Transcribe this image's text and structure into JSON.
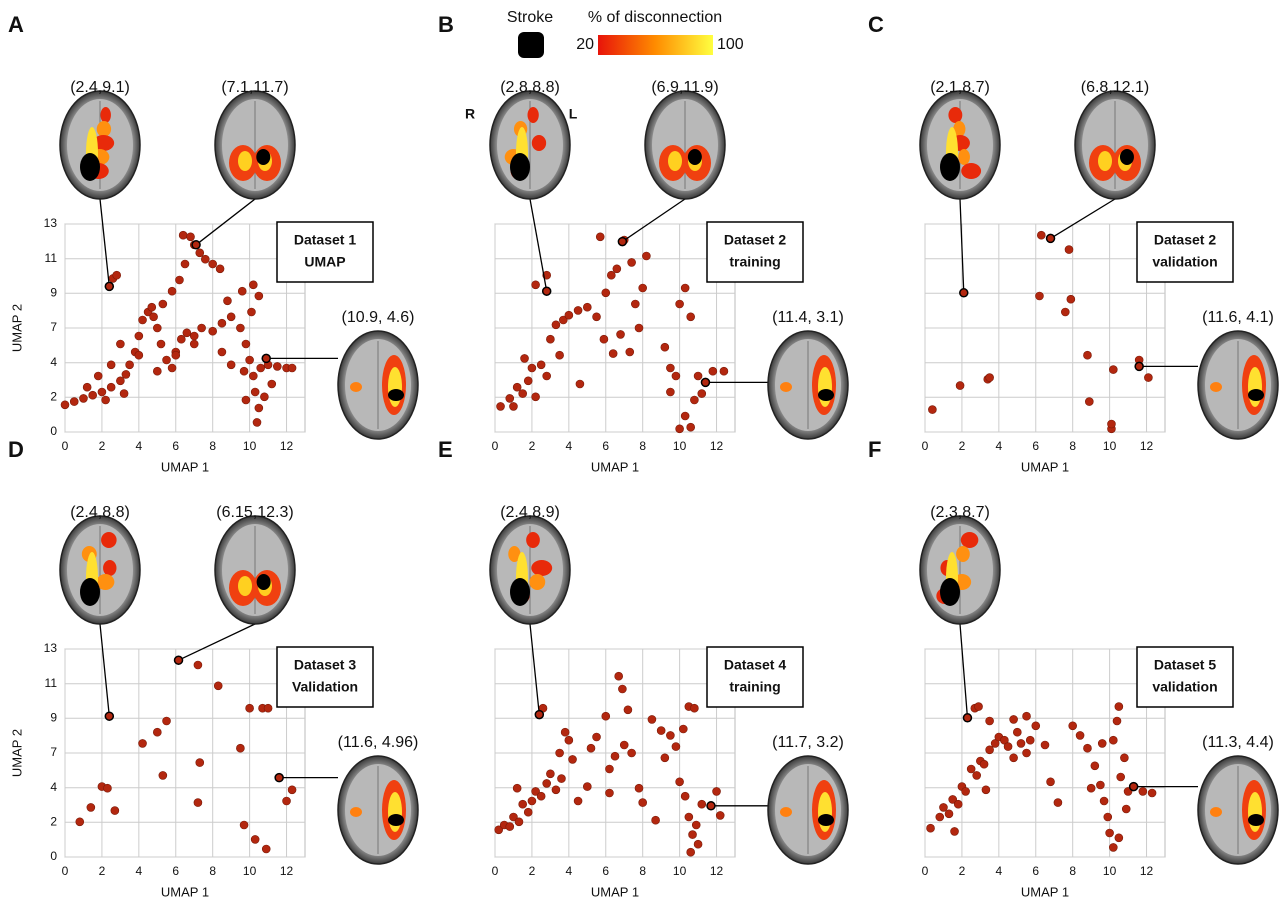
{
  "legend": {
    "stroke_label": "Stroke",
    "scale_title": "% of disconnection",
    "scale_min": 20,
    "scale_max": 100,
    "scale_colors": [
      "#e8140a",
      "#ff8c00",
      "#ffff40"
    ]
  },
  "chart_data": [
    {
      "type": "scatter",
      "panel": "A",
      "annotation": [
        "Dataset 1",
        "UMAP"
      ],
      "xlabel": "UMAP 1",
      "ylabel": "UMAP 2",
      "color": "#b3270f",
      "grid": true,
      "ytick_labels": true,
      "xlim": [
        0,
        13
      ],
      "ylim": [
        0,
        13
      ],
      "xticks": [
        0,
        2,
        4,
        6,
        8,
        10,
        12
      ],
      "yticks": [
        0,
        {
          "value": 2.17,
          "label": "2"
        },
        {
          "value": 4.33,
          "label": "4"
        },
        {
          "value": 6.5,
          "label": "7"
        },
        {
          "value": 8.67,
          "label": "9"
        },
        {
          "value": 10.83,
          "label": "11"
        },
        13
      ],
      "callouts": [
        {
          "label": "(2.4,9.1)",
          "x": 2.4,
          "y": 9.1
        },
        {
          "label": "(7.1,11.7)",
          "x": 7.1,
          "y": 11.7
        },
        {
          "label": "(10.9, 4.6)",
          "x": 10.9,
          "y": 4.6
        }
      ],
      "x": [
        0,
        0.5,
        1,
        1.5,
        2,
        2.5,
        3,
        3.3,
        3.5,
        3.8,
        4,
        4.2,
        4.5,
        4.8,
        5,
        5.2,
        5.5,
        5.8,
        6,
        6.3,
        6.6,
        7,
        7.4,
        8,
        8.5,
        9,
        9.5,
        9.8,
        10,
        10.2,
        10.3,
        10.5,
        10.4,
        9.8,
        9.7,
        10.6,
        11,
        11.5,
        12,
        12.3,
        10.2,
        10.5,
        10.1,
        6.4,
        6.8,
        7,
        7.3,
        7.6,
        8,
        8.4,
        6.5,
        6.2,
        5.8,
        5.3,
        4.7,
        3,
        2.5,
        1.8,
        1.2,
        2.4,
        2.6,
        2.8,
        4,
        5,
        6,
        7,
        8.5,
        9,
        8.8,
        9.6,
        11.2,
        10.8,
        2.2,
        3.2
      ],
      "y": [
        1.7,
        1.9,
        2.1,
        2.3,
        2.5,
        2.8,
        3.2,
        3.6,
        4.2,
        5,
        6,
        7,
        7.5,
        7.2,
        6.5,
        5.5,
        4.5,
        4,
        5,
        5.8,
        6.2,
        6,
        6.5,
        6.3,
        6.8,
        7.2,
        6.5,
        5.5,
        4.5,
        3.5,
        2.5,
        1.5,
        0.6,
        2,
        3.8,
        4,
        4.2,
        4.1,
        4,
        4,
        9.2,
        8.5,
        7.5,
        12.3,
        12.2,
        11.7,
        11.2,
        10.8,
        10.5,
        10.2,
        10.5,
        9.5,
        8.8,
        8,
        7.8,
        5.5,
        4.2,
        3.5,
        2.8,
        9.1,
        9.6,
        9.8,
        4.8,
        3.8,
        4.8,
        5.5,
        5,
        4.2,
        8.2,
        8.8,
        3,
        2.2,
        2,
        2.4
      ]
    },
    {
      "type": "scatter",
      "panel": "B",
      "annotation": [
        "Dataset 2",
        "training"
      ],
      "xlabel": "UMAP 1",
      "color": "#b3270f",
      "grid": true,
      "ytick_labels": false,
      "orientation": [
        "R",
        "L"
      ],
      "xlim": [
        0,
        13
      ],
      "ylim": [
        0,
        13
      ],
      "xticks": [
        0,
        2,
        4,
        6,
        8,
        10,
        12
      ],
      "yticks": [
        0,
        2.17,
        4.33,
        6.5,
        8.67,
        10.83,
        13
      ],
      "callouts": [
        {
          "label": "(2.8,8.8)",
          "x": 2.8,
          "y": 8.8
        },
        {
          "label": "(6.9,11.9)",
          "x": 6.9,
          "y": 11.9
        },
        {
          "label": "(11.4, 3.1)",
          "x": 11.4,
          "y": 3.1
        }
      ],
      "x": [
        0.3,
        0.8,
        1.2,
        1.5,
        1.8,
        2,
        2.2,
        1.6,
        2.5,
        2.8,
        3,
        3.3,
        3.7,
        4,
        4.5,
        5,
        2.8,
        2.2,
        5.7,
        7,
        6.6,
        7.4,
        6,
        6.3,
        5.5,
        5.9,
        6.4,
        6.8,
        7.3,
        7.6,
        8,
        8.2,
        7.8,
        9.2,
        9.5,
        9.8,
        9.5,
        10,
        10.3,
        10.6,
        10.3,
        10.6,
        10.8,
        11,
        11.2,
        11.8,
        12.4,
        10,
        3.5,
        4.6,
        1
      ],
      "y": [
        1.6,
        2.1,
        2.8,
        2.4,
        3.2,
        4,
        2.2,
        4.6,
        4.2,
        3.5,
        5.8,
        6.7,
        7,
        7.3,
        7.6,
        7.8,
        9.8,
        9.2,
        12.2,
        12,
        10.2,
        10.6,
        8.7,
        9.8,
        7.2,
        5.8,
        4.9,
        6.1,
        5,
        8,
        9,
        11,
        6.5,
        5.3,
        4,
        3.5,
        2.5,
        8,
        9,
        7.2,
        1,
        0.3,
        2,
        3.5,
        2.4,
        3.8,
        3.8,
        0.2,
        4.8,
        3,
        1.6
      ]
    },
    {
      "type": "scatter",
      "panel": "C",
      "annotation": [
        "Dataset 2",
        "validation"
      ],
      "xlabel": "UMAP 1",
      "color": "#b3270f",
      "grid": true,
      "ytick_labels": false,
      "xlim": [
        0,
        13
      ],
      "ylim": [
        0,
        13
      ],
      "xticks": [
        0,
        2,
        4,
        6,
        8,
        10,
        12
      ],
      "yticks": [
        0,
        2.17,
        4.33,
        6.5,
        8.67,
        10.83,
        13
      ],
      "callouts": [
        {
          "label": "(2.1,8.7)",
          "x": 2.1,
          "y": 8.7
        },
        {
          "label": "(6.8,12.1)",
          "x": 6.8,
          "y": 12.1
        },
        {
          "label": "(11.6, 4.1)",
          "x": 11.6,
          "y": 4.1
        }
      ],
      "x": [
        0.4,
        1.9,
        3.4,
        3.5,
        6.2,
        6.3,
        7.8,
        7.9,
        7.6,
        8.8,
        8.9,
        10.2,
        11.6,
        12.1,
        10.1,
        10.1
      ],
      "y": [
        1.4,
        2.9,
        3.3,
        3.4,
        8.5,
        12.3,
        11.4,
        8.3,
        7.5,
        4.8,
        1.9,
        3.9,
        4.5,
        3.4,
        0.2,
        0.5
      ]
    },
    {
      "type": "scatter",
      "panel": "D",
      "annotation": [
        "Dataset 3",
        "Validation"
      ],
      "xlabel": "UMAP 1",
      "ylabel": "UMAP 2",
      "color": "#b3270f",
      "grid": true,
      "ytick_labels": true,
      "xlim": [
        0,
        13
      ],
      "ylim": [
        0,
        13
      ],
      "xticks": [
        0,
        2,
        4,
        6,
        8,
        10,
        12
      ],
      "yticks": [
        0,
        {
          "value": 2.17,
          "label": "2"
        },
        {
          "value": 4.33,
          "label": "4"
        },
        {
          "value": 6.5,
          "label": "7"
        },
        {
          "value": 8.67,
          "label": "9"
        },
        {
          "value": 10.83,
          "label": "11"
        },
        13
      ],
      "callouts": [
        {
          "label": "(2.4,8.8)",
          "x": 2.4,
          "y": 8.8
        },
        {
          "label": "(6.15,12.3)",
          "x": 6.15,
          "y": 12.3
        },
        {
          "label": "(11.6, 4.96)",
          "x": 11.6,
          "y": 4.96
        }
      ],
      "x": [
        0.8,
        1.4,
        2,
        2.3,
        2.7,
        4.2,
        5,
        5.5,
        5.3,
        7.2,
        7.3,
        7.2,
        8.3,
        9.5,
        9.7,
        10,
        10.3,
        10.7,
        11,
        10.9,
        12,
        12.3
      ],
      "y": [
        2.2,
        3.1,
        4.4,
        4.3,
        2.9,
        7.1,
        7.8,
        8.5,
        5.1,
        12,
        5.9,
        3.4,
        10.7,
        6.8,
        2,
        9.3,
        1.1,
        9.3,
        9.3,
        0.5,
        3.5,
        4.2
      ]
    },
    {
      "type": "scatter",
      "panel": "E",
      "annotation": [
        "Dataset 4",
        "training"
      ],
      "xlabel": "UMAP 1",
      "color": "#b3270f",
      "grid": true,
      "ytick_labels": false,
      "xlim": [
        0,
        13
      ],
      "ylim": [
        0,
        13
      ],
      "xticks": [
        0,
        2,
        4,
        6,
        8,
        10,
        12
      ],
      "yticks": [
        0,
        2.17,
        4.33,
        6.5,
        8.67,
        10.83,
        13
      ],
      "callouts": [
        {
          "label": "(2.4,8.9)",
          "x": 2.4,
          "y": 8.9
        },
        {
          "label": "(11.7, 3.2)",
          "x": 11.7,
          "y": 3.2
        }
      ],
      "x": [
        0.2,
        0.5,
        0.8,
        1,
        1.3,
        1.5,
        1.8,
        2,
        2.2,
        2.5,
        2.8,
        3,
        3.3,
        3.5,
        3.8,
        4,
        4.2,
        2.6,
        4.5,
        5,
        5.2,
        5.5,
        6,
        6.2,
        6.5,
        6.7,
        6.9,
        7.2,
        7.4,
        7.8,
        8,
        8.5,
        9,
        9.5,
        9.8,
        10.2,
        10.5,
        10.8,
        10,
        10.3,
        10.5,
        10.7,
        10.6,
        10.9,
        11.2,
        12,
        12.2,
        11,
        9.2,
        6.2,
        3.6,
        1.2,
        7,
        8.7
      ],
      "y": [
        1.7,
        2,
        1.9,
        2.5,
        2.2,
        3.3,
        2.8,
        3.5,
        4.1,
        3.8,
        4.6,
        5.2,
        4.2,
        6.5,
        7.8,
        7.3,
        6.1,
        9.3,
        3.5,
        4.4,
        6.8,
        7.5,
        8.8,
        5.5,
        6.3,
        11.3,
        10.5,
        9.2,
        6.5,
        4.3,
        3.4,
        8.6,
        7.9,
        7.6,
        6.9,
        8,
        9.4,
        9.3,
        4.7,
        3.8,
        2.5,
        1.4,
        0.3,
        2,
        3.3,
        4.1,
        2.6,
        0.8,
        6.2,
        4,
        4.9,
        4.3,
        7,
        2.3
      ]
    },
    {
      "type": "scatter",
      "panel": "F",
      "annotation": [
        "Dataset 5",
        "validation"
      ],
      "xlabel": "UMAP 1",
      "color": "#b3270f",
      "grid": true,
      "ytick_labels": false,
      "xlim": [
        0,
        13
      ],
      "ylim": [
        0,
        13
      ],
      "xticks": [
        0,
        2,
        4,
        6,
        8,
        10,
        12
      ],
      "yticks": [
        0,
        2.17,
        4.33,
        6.5,
        8.67,
        10.83,
        13
      ],
      "callouts": [
        {
          "label": "(2.3,8.7)",
          "x": 2.3,
          "y": 8.7
        },
        {
          "label": "(11.3, 4.4)",
          "x": 11.3,
          "y": 4.4
        }
      ],
      "x": [
        0.3,
        0.8,
        1,
        1.3,
        1.5,
        1.8,
        2,
        2.2,
        2.5,
        2.8,
        3,
        3.2,
        3.5,
        3.8,
        4,
        4.3,
        4.5,
        4.8,
        5,
        5.2,
        5.5,
        5.7,
        6,
        6.5,
        2.7,
        2.9,
        3.5,
        4.8,
        5.5,
        7.2,
        6.8,
        8,
        8.4,
        8.8,
        9.2,
        9.5,
        9.7,
        9.9,
        10,
        10.2,
        10.5,
        10.2,
        10.4,
        10.5,
        10.8,
        10.6,
        11,
        11.8,
        12.3,
        9.6,
        10.9,
        9,
        3.3,
        1.6
      ],
      "y": [
        1.8,
        2.5,
        3.1,
        2.7,
        3.6,
        3.3,
        4.4,
        4.1,
        5.5,
        5.1,
        6,
        5.8,
        6.7,
        7.1,
        7.5,
        7.3,
        6.9,
        6.2,
        7.8,
        7.1,
        6.5,
        7.3,
        8.2,
        7,
        9.3,
        9.4,
        8.5,
        8.6,
        8.8,
        3.4,
        4.7,
        8.2,
        7.6,
        6.8,
        5.7,
        4.5,
        3.5,
        2.5,
        1.5,
        0.6,
        1.2,
        7.3,
        8.5,
        9.4,
        6.2,
        5,
        4.1,
        4.1,
        4,
        7.1,
        3,
        4.3,
        4.2,
        1.6
      ]
    }
  ]
}
